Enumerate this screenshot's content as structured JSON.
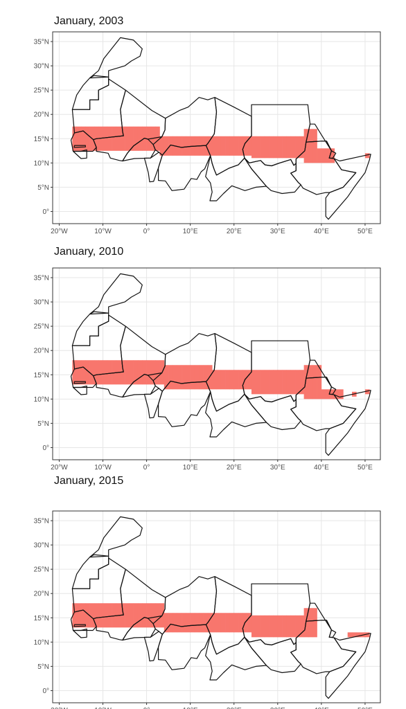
{
  "panels": [
    {
      "title": "January, 2003",
      "bands": [
        {
          "lon": [
            -17,
            3
          ],
          "lat": [
            12.5,
            17.5
          ]
        },
        {
          "lon": [
            3,
            24
          ],
          "lat": [
            11.5,
            15.5
          ]
        },
        {
          "lon": [
            24,
            36
          ],
          "lat": [
            11,
            15.5
          ]
        },
        {
          "lon": [
            36,
            39
          ],
          "lat": [
            10,
            17
          ]
        },
        {
          "lon": [
            39,
            43
          ],
          "lat": [
            10,
            13
          ]
        },
        {
          "lon": [
            50,
            51
          ],
          "lat": [
            11,
            12
          ]
        }
      ]
    },
    {
      "title": "January, 2010",
      "bands": [
        {
          "lon": [
            -17,
            4
          ],
          "lat": [
            13,
            18
          ]
        },
        {
          "lon": [
            4,
            15
          ],
          "lat": [
            12,
            17
          ]
        },
        {
          "lon": [
            15,
            24
          ],
          "lat": [
            12,
            16
          ]
        },
        {
          "lon": [
            24,
            36
          ],
          "lat": [
            11,
            16
          ]
        },
        {
          "lon": [
            36,
            40
          ],
          "lat": [
            10,
            17
          ]
        },
        {
          "lon": [
            40,
            45
          ],
          "lat": [
            10,
            12
          ]
        },
        {
          "lon": [
            47,
            48
          ],
          "lat": [
            10.5,
            11.5
          ]
        },
        {
          "lon": [
            50,
            51
          ],
          "lat": [
            11,
            12
          ]
        }
      ]
    },
    {
      "title": "January, 2015",
      "bands": [
        {
          "lon": [
            -17,
            4
          ],
          "lat": [
            13,
            18
          ]
        },
        {
          "lon": [
            4,
            24
          ],
          "lat": [
            12,
            16
          ]
        },
        {
          "lon": [
            24,
            36
          ],
          "lat": [
            11,
            15.5
          ]
        },
        {
          "lon": [
            36,
            39
          ],
          "lat": [
            11,
            17
          ]
        },
        {
          "lon": [
            46,
            51
          ],
          "lat": [
            11,
            12
          ]
        }
      ]
    }
  ],
  "x_ticks": [
    {
      "value": -20,
      "label": "20°W"
    },
    {
      "value": -10,
      "label": "10°W"
    },
    {
      "value": 0,
      "label": "0°"
    },
    {
      "value": 10,
      "label": "10°E"
    },
    {
      "value": 20,
      "label": "20°E"
    },
    {
      "value": 30,
      "label": "30°E"
    },
    {
      "value": 40,
      "label": "40°E"
    },
    {
      "value": 50,
      "label": "50°E"
    }
  ],
  "y_ticks": [
    {
      "value": 35,
      "label": "35°N"
    },
    {
      "value": 30,
      "label": "30°N"
    },
    {
      "value": 25,
      "label": "25°N"
    },
    {
      "value": 20,
      "label": "20°N"
    },
    {
      "value": 15,
      "label": "15°N"
    },
    {
      "value": 10,
      "label": "10°N"
    },
    {
      "value": 5,
      "label": "5°N"
    },
    {
      "value": 0,
      "label": "0°"
    }
  ],
  "extent": {
    "lon": [
      -21.5,
      53.5
    ],
    "lat": [
      -2.5,
      37
    ]
  },
  "colors": {
    "fill": "#f8766d",
    "grid": "#e6e6e6",
    "border": "#333333",
    "outline": "#111111"
  },
  "countries": [
    [
      [
        -17,
        21
      ],
      [
        -13,
        21
      ],
      [
        -13,
        23
      ],
      [
        -11,
        23
      ],
      [
        -11,
        25
      ],
      [
        -8.7,
        26
      ],
      [
        -8.7,
        27.7
      ],
      [
        -12,
        28
      ],
      [
        -13,
        27.5
      ],
      [
        -14.5,
        26
      ],
      [
        -16,
        24
      ],
      [
        -17,
        21
      ]
    ],
    [
      [
        -13,
        27.5
      ],
      [
        -11,
        29
      ],
      [
        -9.8,
        31.5
      ],
      [
        -6,
        35.8
      ],
      [
        -3,
        35.3
      ],
      [
        -1,
        33.5
      ],
      [
        -1.5,
        32
      ],
      [
        -3.5,
        31
      ],
      [
        -5,
        30
      ],
      [
        -8.7,
        29
      ],
      [
        -8.7,
        27.7
      ],
      [
        -13,
        27.5
      ]
    ],
    [
      [
        -17,
        21
      ],
      [
        -13,
        21
      ],
      [
        -13,
        23
      ],
      [
        -11,
        23
      ],
      [
        -11,
        25
      ],
      [
        -8.7,
        26
      ],
      [
        -8.7,
        27.3
      ],
      [
        -4.8,
        25
      ],
      [
        -6,
        21
      ],
      [
        -5.5,
        16.5
      ],
      [
        -5.3,
        15.6
      ],
      [
        -11.5,
        15
      ],
      [
        -12.2,
        14.8
      ],
      [
        -14.5,
        16.6
      ],
      [
        -16.5,
        16.2
      ],
      [
        -17,
        21
      ]
    ],
    [
      [
        -17.3,
        14.7
      ],
      [
        -16.5,
        16.2
      ],
      [
        -14.5,
        16.6
      ],
      [
        -12.2,
        14.8
      ],
      [
        -11.5,
        13.2
      ],
      [
        -12.3,
        12.4
      ],
      [
        -15,
        12.4
      ],
      [
        -16.8,
        12.4
      ],
      [
        -17.3,
        14.7
      ]
    ],
    [
      [
        -16.5,
        13.6
      ],
      [
        -14,
        13.6
      ],
      [
        -14,
        13.3
      ],
      [
        -16.6,
        13.2
      ],
      [
        -16.5,
        13.6
      ]
    ],
    [
      [
        -16.8,
        12.4
      ],
      [
        -15,
        12.4
      ],
      [
        -13.7,
        12.7
      ],
      [
        -13.7,
        11
      ],
      [
        -15,
        10.9
      ],
      [
        -16.8,
        12.4
      ]
    ],
    [
      [
        -12.2,
        14.8
      ],
      [
        -11.5,
        15
      ],
      [
        -5.3,
        15.6
      ],
      [
        -5.5,
        16.5
      ],
      [
        -6,
        21
      ],
      [
        -4.8,
        25
      ],
      [
        1.2,
        20.8
      ],
      [
        4.3,
        19.2
      ],
      [
        4.2,
        16.8
      ],
      [
        3.5,
        15.4
      ],
      [
        0.3,
        14.9
      ],
      [
        -0.5,
        15.1
      ],
      [
        -3,
        13.5
      ],
      [
        -4.4,
        12
      ],
      [
        -5.5,
        10.4
      ],
      [
        -6.2,
        10.5
      ],
      [
        -8.3,
        11
      ],
      [
        -8.8,
        12
      ],
      [
        -11.5,
        12.4
      ],
      [
        -11.5,
        13.2
      ],
      [
        -12.2,
        14.8
      ]
    ],
    [
      [
        -5.5,
        10.4
      ],
      [
        -4.4,
        12
      ],
      [
        -3,
        13.5
      ],
      [
        -0.5,
        15.1
      ],
      [
        0.3,
        14.9
      ],
      [
        1.5,
        13.8
      ],
      [
        2,
        12.7
      ],
      [
        0.9,
        11
      ],
      [
        -2.8,
        10.9
      ],
      [
        -5.5,
        10.4
      ]
    ],
    [
      [
        -0.5,
        11
      ],
      [
        0.9,
        11
      ],
      [
        2.8,
        12.2
      ],
      [
        3.6,
        11.6
      ],
      [
        2.7,
        9
      ],
      [
        1.6,
        6.2
      ],
      [
        0.7,
        6.1
      ],
      [
        0.4,
        8
      ],
      [
        -0.5,
        11
      ]
    ],
    [
      [
        4.3,
        19.2
      ],
      [
        4.2,
        16.8
      ],
      [
        3.5,
        15.4
      ],
      [
        1.5,
        13.8
      ],
      [
        2,
        12.7
      ],
      [
        2.8,
        12.2
      ],
      [
        3.6,
        11.6
      ],
      [
        5.5,
        13.7
      ],
      [
        8,
        13.2
      ],
      [
        10,
        13.4
      ],
      [
        13.6,
        13.6
      ],
      [
        14,
        14
      ],
      [
        15.5,
        16
      ],
      [
        16,
        20.5
      ],
      [
        15.6,
        23.5
      ],
      [
        14,
        23
      ],
      [
        12,
        23.5
      ],
      [
        9.5,
        21.5
      ],
      [
        7.5,
        20.8
      ],
      [
        4.3,
        19.2
      ]
    ],
    [
      [
        2.7,
        9
      ],
      [
        3.6,
        11.6
      ],
      [
        5.5,
        13.7
      ],
      [
        8,
        13.2
      ],
      [
        10,
        13.4
      ],
      [
        13.6,
        13.6
      ],
      [
        14.6,
        11.5
      ],
      [
        13.3,
        8.8
      ],
      [
        12.5,
        8.2
      ],
      [
        11.5,
        6.6
      ],
      [
        10.2,
        6.8
      ],
      [
        8.6,
        4.6
      ],
      [
        5.8,
        4.3
      ],
      [
        4.3,
        6.3
      ],
      [
        2.7,
        6.4
      ],
      [
        2.7,
        9
      ]
    ],
    [
      [
        13.6,
        13.6
      ],
      [
        14,
        14
      ],
      [
        15.5,
        16
      ],
      [
        16,
        20.5
      ],
      [
        15.6,
        23.5
      ],
      [
        20,
        21.5
      ],
      [
        24,
        19.6
      ],
      [
        24,
        15.6
      ],
      [
        22.5,
        14
      ],
      [
        22,
        12.8
      ],
      [
        22.4,
        11
      ],
      [
        21,
        9.6
      ],
      [
        18.8,
        8.9
      ],
      [
        16,
        7.5
      ],
      [
        15.5,
        8.6
      ],
      [
        15,
        9.9
      ],
      [
        14.6,
        11.5
      ],
      [
        13.6,
        13.6
      ]
    ],
    [
      [
        14.6,
        11.5
      ],
      [
        15,
        9.9
      ],
      [
        15.5,
        8.6
      ],
      [
        16,
        7.5
      ],
      [
        18.8,
        8.9
      ],
      [
        21,
        9.6
      ],
      [
        22.4,
        11
      ],
      [
        24,
        8.8
      ],
      [
        27.4,
        5.2
      ],
      [
        25,
        5
      ],
      [
        22.5,
        4.3
      ],
      [
        19.5,
        5.3
      ],
      [
        17.6,
        3.7
      ],
      [
        16,
        2.2
      ],
      [
        14.5,
        2.2
      ],
      [
        15,
        4
      ],
      [
        14.6,
        5.9
      ],
      [
        13.5,
        7.2
      ],
      [
        14.6,
        11.5
      ]
    ],
    [
      [
        24,
        19.6
      ],
      [
        24,
        22
      ],
      [
        31.4,
        22
      ],
      [
        36.9,
        22
      ],
      [
        37.4,
        18
      ],
      [
        36.5,
        14.3
      ],
      [
        36.2,
        12.5
      ],
      [
        34.2,
        10.8
      ],
      [
        34.2,
        9.9
      ],
      [
        33.7,
        9.5
      ],
      [
        33,
        10.7
      ],
      [
        30.5,
        10
      ],
      [
        28.6,
        9.4
      ],
      [
        27.1,
        9.6
      ],
      [
        26.1,
        10.5
      ],
      [
        25,
        10.3
      ],
      [
        23.5,
        10
      ],
      [
        22.4,
        11
      ],
      [
        22,
        12.8
      ],
      [
        22.5,
        14
      ],
      [
        24,
        15.6
      ],
      [
        24,
        19.6
      ]
    ],
    [
      [
        22.4,
        11
      ],
      [
        23.5,
        10
      ],
      [
        25,
        10.3
      ],
      [
        26.1,
        10.5
      ],
      [
        27.1,
        9.6
      ],
      [
        28.6,
        9.4
      ],
      [
        30.5,
        10
      ],
      [
        33,
        10.7
      ],
      [
        33.7,
        9.5
      ],
      [
        34.2,
        9.9
      ],
      [
        34.2,
        8.4
      ],
      [
        33,
        7.9
      ],
      [
        34.7,
        6
      ],
      [
        35.3,
        5.5
      ],
      [
        33.9,
        4
      ],
      [
        31,
        3.7
      ],
      [
        28.5,
        4.3
      ],
      [
        27.4,
        5.2
      ],
      [
        24,
        8.8
      ],
      [
        22.4,
        11
      ]
    ],
    [
      [
        36.5,
        14.3
      ],
      [
        37.4,
        18
      ],
      [
        38.5,
        18
      ],
      [
        40,
        15.8
      ],
      [
        42.3,
        12.5
      ],
      [
        41.2,
        14.5
      ],
      [
        40,
        14.5
      ],
      [
        38.2,
        14.4
      ],
      [
        36.5,
        14.3
      ]
    ],
    [
      [
        41.8,
        11
      ],
      [
        42.3,
        12.5
      ],
      [
        43.3,
        12
      ],
      [
        42.6,
        11
      ],
      [
        41.8,
        11
      ]
    ],
    [
      [
        34.2,
        8.4
      ],
      [
        34.2,
        10.8
      ],
      [
        36.2,
        12.5
      ],
      [
        36.5,
        14.3
      ],
      [
        38.2,
        14.4
      ],
      [
        40,
        14.5
      ],
      [
        41.2,
        14.5
      ],
      [
        42.3,
        12.5
      ],
      [
        41.8,
        11
      ],
      [
        42.9,
        10.9
      ],
      [
        44.6,
        8.6
      ],
      [
        47.9,
        8
      ],
      [
        45,
        5
      ],
      [
        41.9,
        3.9
      ],
      [
        41,
        3.9
      ],
      [
        38.9,
        3.5
      ],
      [
        35.8,
        4.8
      ],
      [
        35.3,
        5.5
      ],
      [
        34.7,
        6
      ],
      [
        33,
        7.9
      ],
      [
        34.2,
        8.4
      ]
    ],
    [
      [
        42.9,
        10.9
      ],
      [
        44.2,
        10.4
      ],
      [
        51.3,
        11.8
      ],
      [
        51,
        10.6
      ],
      [
        50,
        8
      ],
      [
        47.5,
        5
      ],
      [
        46,
        3
      ],
      [
        41.6,
        -1.6
      ],
      [
        41,
        -1
      ],
      [
        41,
        2.8
      ],
      [
        41.9,
        3.9
      ],
      [
        45,
        5
      ],
      [
        47.9,
        8
      ],
      [
        44.6,
        8.6
      ],
      [
        42.9,
        10.9
      ]
    ]
  ]
}
